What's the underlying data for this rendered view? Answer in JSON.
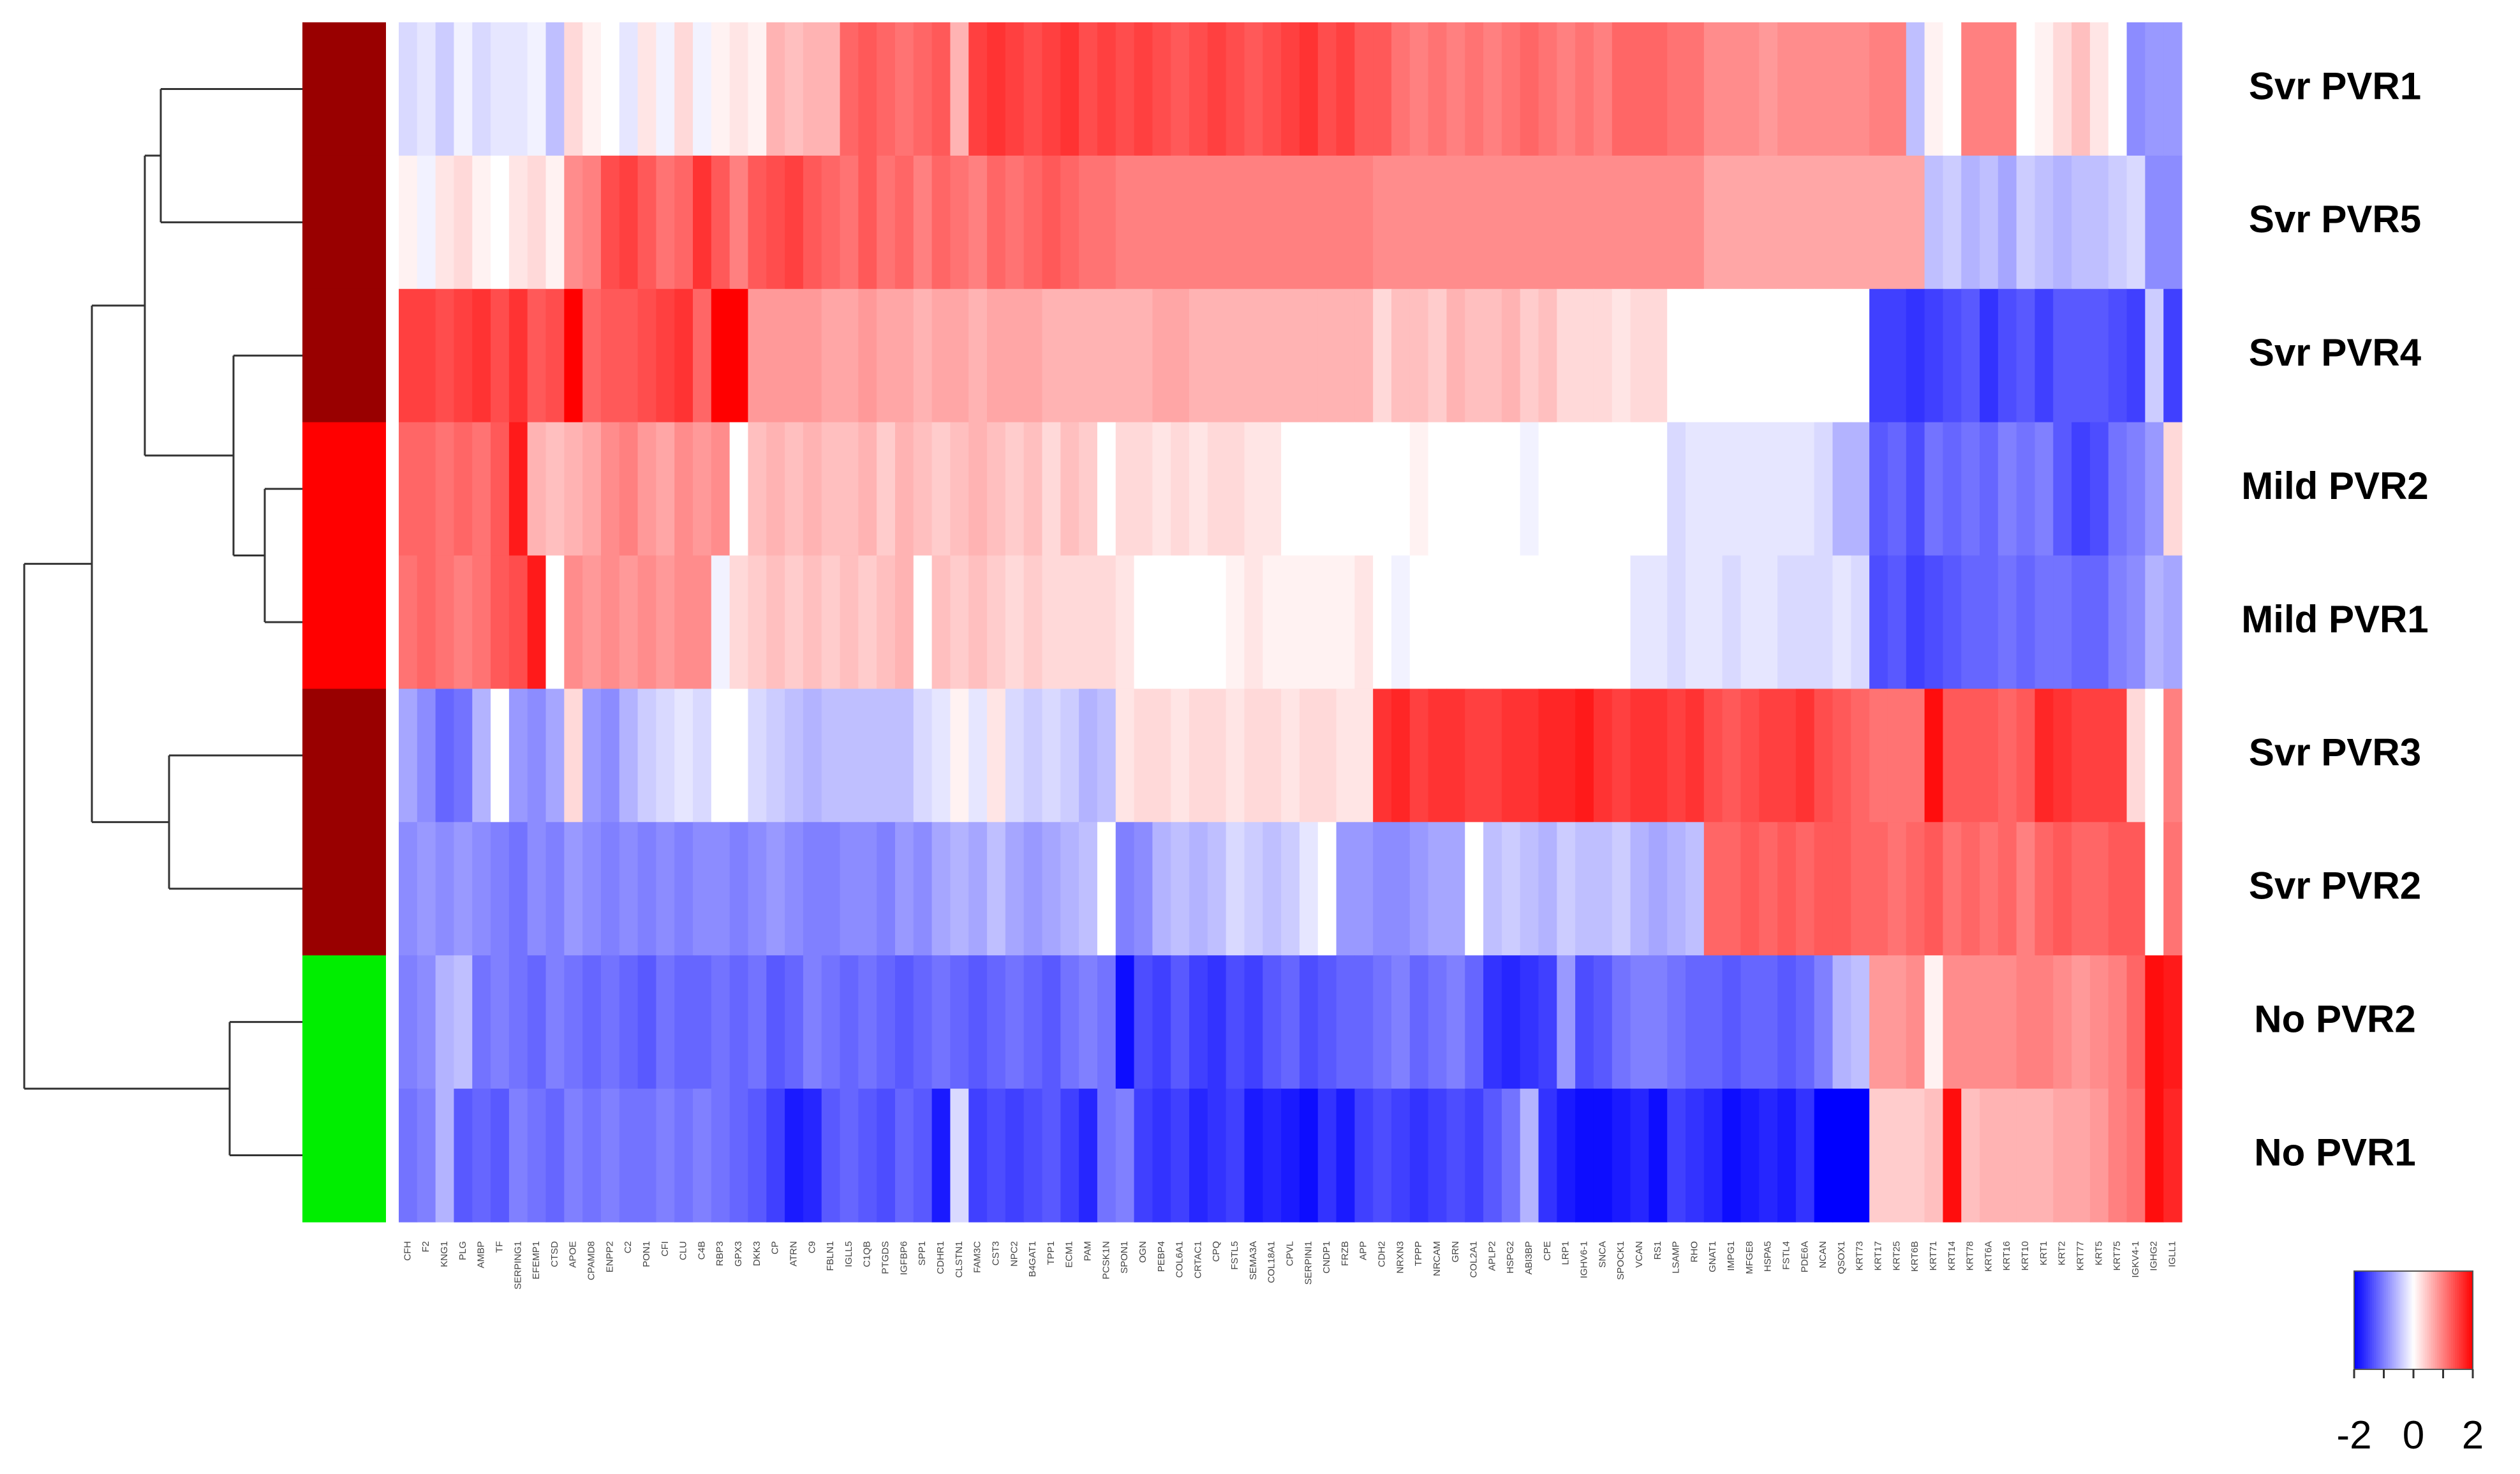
{
  "chart_data": {
    "type": "heatmap",
    "rows": [
      "Svr PVR1",
      "Svr PVR5",
      "Svr PVR4",
      "Mild PVR2",
      "Mild PVR1",
      "Svr PVR3",
      "Svr PVR2",
      "No PVR2",
      "No PVR1"
    ],
    "row_colors": [
      "#990000",
      "#990000",
      "#990000",
      "#ff0000",
      "#ff0000",
      "#990000",
      "#990000",
      "#00ee00",
      "#00ee00"
    ],
    "columns": [
      "CFH",
      "F2",
      "KNG1",
      "PLG",
      "AMBP",
      "TF",
      "SERPING1",
      "EFEMP1",
      "CTSD",
      "APOE",
      "CPAMD8",
      "ENPP2",
      "C2",
      "PON1",
      "CFI",
      "CLU",
      "C4B",
      "RBP3",
      "GPX3",
      "DKK3",
      "CP",
      "ATRN",
      "C9",
      "FBLN1",
      "IGLL5",
      "C1QB",
      "PTGDS",
      "IGFBP6",
      "SPP1",
      "CDHR1",
      "CLSTN1",
      "FAM3C",
      "CST3",
      "NPC2",
      "B4GAT1",
      "TPP1",
      "ECM1",
      "PAM",
      "PCSK1N",
      "SPON1",
      "OGN",
      "PEBP4",
      "COL6A1",
      "CRTAC1",
      "CPQ",
      "FSTL5",
      "SEMA3A",
      "COL18A1",
      "CPVL",
      "SERPINI1",
      "CNDP1",
      "FRZB",
      "APP",
      "CDH2",
      "NRXN3",
      "TPPP",
      "NRCAM",
      "GRN",
      "COL2A1",
      "APLP2",
      "HSPG2",
      "ABI3BP",
      "CPE",
      "LRP1",
      "IGHV6-1",
      "SNCA",
      "SPOCK1",
      "VCAN",
      "RS1",
      "LSAMP",
      "RHO",
      "GNAT1",
      "IMPG1",
      "MFGE8",
      "HSPA5",
      "FSTL4",
      "PDE6A",
      "NCAN",
      "QSOX1",
      "KRT73",
      "KRT17",
      "KRT25",
      "KRT6B",
      "KRT71",
      "KRT14",
      "KRT78",
      "KRT6A",
      "KRT16",
      "KRT10",
      "KRT1",
      "KRT2",
      "KRT77",
      "KRT5",
      "KRT75",
      "IGKV4-1",
      "IGHG2",
      "IGLL1"
    ],
    "values": [
      [
        -0.3,
        -0.2,
        -0.4,
        -0.1,
        -0.3,
        -0.2,
        -0.2,
        -0.1,
        -0.5,
        0.3,
        0.1,
        0,
        -0.2,
        0.2,
        -0.1,
        0.3,
        -0.1,
        0.1,
        0.2,
        0.1,
        0.6,
        0.5,
        0.6,
        0.6,
        1.2,
        1.3,
        1.2,
        1.1,
        1.2,
        1.3,
        0.6,
        1.5,
        1.6,
        1.5,
        1.4,
        1.5,
        1.6,
        1.4,
        1.5,
        1.4,
        1.5,
        1.4,
        1.3,
        1.4,
        1.5,
        1.4,
        1.3,
        1.4,
        1.5,
        1.6,
        1.4,
        1.5,
        1.3,
        1.3,
        1.1,
        1.0,
        1.1,
        1.0,
        1.1,
        1.0,
        1.1,
        1.2,
        1.1,
        1.0,
        1.1,
        1.0,
        1.2,
        1.2,
        1.2,
        1.1,
        1.1,
        0.9,
        0.9,
        0.9,
        0.8,
        0.9,
        0.9,
        0.9,
        0.9,
        0.9,
        1.0,
        1.0,
        -0.5,
        0.1,
        0,
        1.0,
        1.0,
        1.0,
        0,
        0.1,
        0.3,
        0.5,
        0.2,
        0,
        -0.9,
        -0.8,
        -0.8
      ],
      [
        0.1,
        -0.1,
        0.2,
        0.3,
        0.1,
        0,
        0.2,
        0.3,
        0.1,
        0.9,
        1.0,
        1.4,
        1.5,
        1.3,
        1.1,
        1.2,
        1.6,
        1.3,
        1.0,
        1.3,
        1.4,
        1.5,
        1.3,
        1.2,
        1.1,
        1.3,
        1.1,
        1.2,
        1.0,
        1.2,
        1.1,
        1.0,
        1.2,
        1.1,
        1.2,
        1.3,
        1.2,
        1.1,
        1.1,
        1.0,
        1.0,
        1.0,
        1.0,
        1.0,
        1.0,
        1.0,
        1.0,
        1.0,
        1.0,
        1.0,
        1.0,
        1.0,
        1.0,
        0.9,
        0.9,
        0.9,
        0.9,
        0.9,
        0.9,
        0.9,
        0.9,
        0.9,
        0.9,
        0.9,
        0.9,
        0.9,
        0.9,
        0.9,
        0.9,
        0.9,
        0.9,
        0.7,
        0.7,
        0.7,
        0.7,
        0.7,
        0.7,
        0.7,
        0.7,
        0.7,
        0.7,
        0.7,
        0.7,
        -0.5,
        -0.4,
        -0.6,
        -0.5,
        -0.7,
        -0.4,
        -0.5,
        -0.6,
        -0.5,
        -0.5,
        -0.4,
        -0.3,
        -0.9,
        -0.9
      ],
      [
        1.5,
        1.5,
        1.4,
        1.5,
        1.6,
        1.4,
        1.6,
        1.3,
        1.4,
        2.0,
        1.2,
        1.3,
        1.3,
        1.4,
        1.5,
        1.6,
        1.2,
        2.0,
        2.0,
        0.8,
        0.8,
        0.8,
        0.8,
        0.7,
        0.7,
        0.8,
        0.7,
        0.7,
        0.6,
        0.7,
        0.7,
        0.6,
        0.7,
        0.7,
        0.7,
        0.6,
        0.6,
        0.6,
        0.6,
        0.6,
        0.6,
        0.7,
        0.7,
        0.6,
        0.6,
        0.6,
        0.6,
        0.6,
        0.6,
        0.6,
        0.6,
        0.6,
        0.6,
        0.3,
        0.5,
        0.5,
        0.4,
        0.6,
        0.5,
        0.5,
        0.6,
        0.4,
        0.5,
        0.3,
        0.3,
        0.3,
        0.2,
        0.3,
        0.3,
        0.0,
        0.0,
        0,
        0,
        0,
        0,
        0,
        0,
        0,
        0,
        0,
        -1.5,
        -1.5,
        -1.6,
        -1.5,
        -1.4,
        -1.3,
        -1.6,
        -1.4,
        -1.3,
        -1.5,
        -1.3,
        -1.3,
        -1.3,
        -1.4,
        -1.5,
        -0.4,
        -1.5
      ],
      [
        1.2,
        1.2,
        1.1,
        1.2,
        1.1,
        1.3,
        1.8,
        0.6,
        0.5,
        0.6,
        0.7,
        0.9,
        1.0,
        0.8,
        0.7,
        0.9,
        0.8,
        0.9,
        0,
        0.5,
        0.6,
        0.5,
        0.6,
        0.5,
        0.5,
        0.6,
        0.4,
        0.6,
        0.5,
        0.4,
        0.5,
        0.6,
        0.5,
        0.4,
        0.5,
        0.3,
        0.5,
        0.4,
        0,
        0.3,
        0.3,
        0.2,
        0.3,
        0.2,
        0.3,
        0.3,
        0.2,
        0.2,
        0,
        0,
        0,
        0,
        0,
        0,
        0,
        0.1,
        0,
        0,
        0,
        0,
        0,
        -0.1,
        0,
        0,
        0,
        0,
        0,
        0,
        0,
        -0.3,
        -0.2,
        -0.2,
        -0.2,
        -0.2,
        -0.2,
        -0.2,
        -0.2,
        -0.3,
        -0.6,
        -0.6,
        -1.3,
        -1.2,
        -1.4,
        -1.1,
        -1.2,
        -1.1,
        -1.2,
        -1.0,
        -1.1,
        -1.0,
        -1.3,
        -1.5,
        -1.4,
        -1.1,
        -1.0,
        -0.8,
        0.3
      ],
      [
        1.1,
        1.2,
        1.1,
        1.0,
        1.1,
        1.3,
        1.4,
        1.8,
        0.0,
        0.9,
        0.8,
        0.9,
        0.8,
        0.9,
        0.8,
        0.9,
        0.9,
        -0.1,
        0.3,
        0.4,
        0.5,
        0.4,
        0.5,
        0.4,
        0.5,
        0.4,
        0.5,
        0.6,
        0.0,
        0.5,
        0.4,
        0.5,
        0.4,
        0.3,
        0.4,
        0.3,
        0.3,
        0.3,
        0.3,
        0.2,
        0.0,
        0.0,
        0.0,
        0.0,
        0.0,
        0.1,
        0.2,
        0.1,
        0.1,
        0.1,
        0.1,
        0.1,
        0.2,
        0,
        -0.1,
        0,
        0,
        0,
        0,
        0,
        0,
        0,
        0,
        0,
        0,
        0,
        0,
        -0.2,
        -0.2,
        -0.3,
        -0.2,
        -0.2,
        -0.3,
        -0.2,
        -0.2,
        -0.3,
        -0.3,
        -0.3,
        -0.2,
        -0.3,
        -1.4,
        -1.3,
        -1.5,
        -1.4,
        -1.3,
        -1.2,
        -1.2,
        -1.1,
        -1.2,
        -1.1,
        -1.1,
        -1.2,
        -1.2,
        -1.0,
        -0.9,
        -0.6,
        -0.7
      ],
      [
        -0.7,
        -0.9,
        -1.2,
        -1.1,
        -0.6,
        0.0,
        -0.8,
        -0.9,
        -0.7,
        0.3,
        -0.8,
        -0.9,
        -0.6,
        -0.4,
        -0.3,
        -0.2,
        -0.3,
        0,
        0,
        -0.3,
        -0.4,
        -0.5,
        -0.6,
        -0.5,
        -0.5,
        -0.5,
        -0.5,
        -0.5,
        -0.3,
        -0.2,
        0.1,
        -0.2,
        0.2,
        -0.3,
        -0.4,
        -0.3,
        -0.4,
        -0.6,
        -0.5,
        0.2,
        0.3,
        0.3,
        0.2,
        0.3,
        0.3,
        0.2,
        0.3,
        0.3,
        0.2,
        0.3,
        0.3,
        0.2,
        0.2,
        1.6,
        1.7,
        1.5,
        1.6,
        1.6,
        1.5,
        1.5,
        1.6,
        1.6,
        1.7,
        1.7,
        1.8,
        1.6,
        1.5,
        1.6,
        1.6,
        1.5,
        1.6,
        1.4,
        1.3,
        1.4,
        1.5,
        1.5,
        1.6,
        1.4,
        1.3,
        1.2,
        1.1,
        1.1,
        1.1,
        1.9,
        1.3,
        1.3,
        1.3,
        1.2,
        1.3,
        1.7,
        1.6,
        1.5,
        1.5,
        1.5,
        0.3,
        0.0,
        1.0
      ],
      [
        -0.9,
        -0.8,
        -0.9,
        -0.8,
        -0.9,
        -1.0,
        -1.1,
        -0.9,
        -1.0,
        -0.8,
        -0.9,
        -1.0,
        -0.9,
        -1.0,
        -0.9,
        -1.0,
        -0.9,
        -0.9,
        -1.0,
        -0.9,
        -0.8,
        -0.9,
        -1.0,
        -1.0,
        -0.9,
        -0.9,
        -1.0,
        -0.8,
        -0.9,
        -0.7,
        -0.6,
        -0.7,
        -0.5,
        -0.7,
        -0.8,
        -0.7,
        -0.6,
        -0.5,
        0.0,
        -1.0,
        -0.9,
        -0.6,
        -0.5,
        -0.6,
        -0.5,
        -0.3,
        -0.4,
        -0.5,
        -0.4,
        -0.2,
        0.0,
        -0.8,
        -0.8,
        -0.9,
        -0.9,
        -0.8,
        -0.7,
        -0.7,
        0.0,
        -0.5,
        -0.4,
        -0.5,
        -0.6,
        -0.4,
        -0.5,
        -0.5,
        -0.4,
        -0.6,
        -0.7,
        -0.6,
        -0.5,
        1.2,
        1.2,
        1.3,
        1.2,
        1.3,
        1.2,
        1.3,
        1.3,
        1.2,
        1.2,
        1.1,
        1.2,
        1.3,
        1.1,
        1.2,
        1.1,
        1.2,
        1.0,
        1.2,
        1.3,
        1.2,
        1.2,
        1.3,
        1.3,
        0.0,
        1.1
      ],
      [
        -1.0,
        -0.9,
        -0.6,
        -0.5,
        -1.1,
        -1.0,
        -1.1,
        -1.2,
        -1.0,
        -1.1,
        -1.2,
        -1.1,
        -1.2,
        -1.3,
        -1.1,
        -1.2,
        -1.2,
        -1.1,
        -1.2,
        -1.1,
        -1.3,
        -1.2,
        -1.0,
        -1.1,
        -1.2,
        -1.1,
        -1.2,
        -1.3,
        -1.2,
        -1.1,
        -1.2,
        -1.3,
        -1.2,
        -1.1,
        -1.2,
        -1.3,
        -1.1,
        -1.0,
        -1.1,
        -1.9,
        -1.4,
        -1.5,
        -1.3,
        -1.5,
        -1.6,
        -1.4,
        -1.5,
        -1.3,
        -1.2,
        -1.4,
        -1.3,
        -1.2,
        -1.2,
        -1.1,
        -1.0,
        -1.2,
        -1.1,
        -1.0,
        -1.2,
        -1.6,
        -1.7,
        -1.6,
        -1.5,
        -0.8,
        -1.4,
        -1.3,
        -1.1,
        -1.0,
        -1.0,
        -1.1,
        -1.2,
        -1.2,
        -1.3,
        -1.2,
        -1.2,
        -1.3,
        -1.2,
        -1.0,
        -0.6,
        -0.5,
        0.8,
        0.8,
        0.9,
        0.1,
        0.9,
        0.9,
        0.9,
        0.9,
        1.0,
        1.0,
        0.9,
        0.8,
        0.9,
        1.0,
        1.2,
        1.9,
        1.8
      ],
      [
        -1.1,
        -1.0,
        -0.6,
        -1.3,
        -1.2,
        -1.3,
        -1.0,
        -1.1,
        -1.2,
        -1.0,
        -1.1,
        -1.0,
        -1.1,
        -1.1,
        -1.0,
        -1.1,
        -1.0,
        -1.1,
        -1.2,
        -1.3,
        -1.5,
        -1.8,
        -1.7,
        -1.3,
        -1.2,
        -1.3,
        -1.4,
        -1.2,
        -1.3,
        -1.8,
        -0.3,
        -1.5,
        -1.4,
        -1.5,
        -1.4,
        -1.3,
        -1.5,
        -1.7,
        -1.1,
        -1.0,
        -1.5,
        -1.6,
        -1.5,
        -1.7,
        -1.6,
        -1.5,
        -1.8,
        -1.7,
        -1.8,
        -1.9,
        -1.6,
        -1.8,
        -1.5,
        -1.4,
        -1.5,
        -1.6,
        -1.5,
        -1.4,
        -1.5,
        -1.3,
        -1.1,
        -0.6,
        -1.6,
        -1.8,
        -1.9,
        -1.9,
        -1.8,
        -1.7,
        -1.9,
        -1.5,
        -1.6,
        -1.7,
        -1.9,
        -1.8,
        -1.7,
        -1.8,
        -1.6,
        -2.0,
        -2.0,
        -2.0,
        0.4,
        0.4,
        0.4,
        0.5,
        1.9,
        0.5,
        0.6,
        0.6,
        0.6,
        0.6,
        0.7,
        0.7,
        0.8,
        1.0,
        1.1,
        1.9,
        1.7
      ]
    ],
    "zlim": [
      -2,
      2
    ],
    "colorbar_ticks": [
      -2,
      0,
      2
    ],
    "colorbar_minor_ticks": [
      -2,
      -1,
      0,
      1,
      2
    ],
    "low_color": "#0000ff",
    "mid_color": "#ffffff",
    "high_color": "#ff0000"
  }
}
